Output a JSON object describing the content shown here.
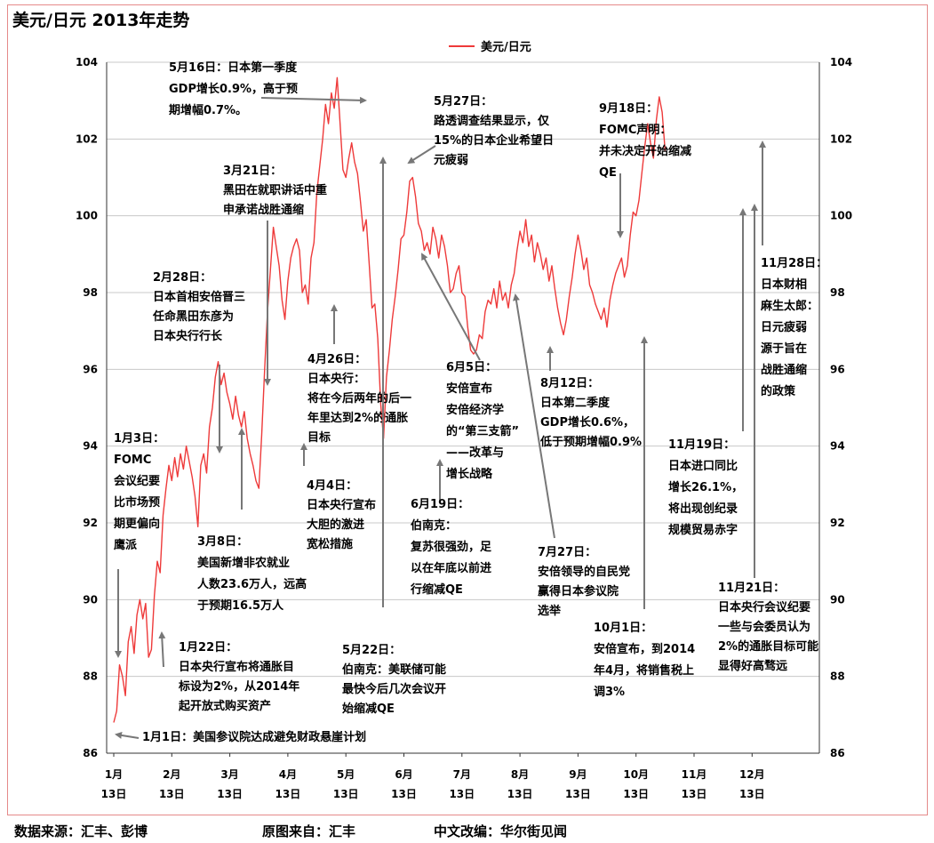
{
  "title": "美元/日元 2013年走势",
  "footer": {
    "source": "数据来源：汇丰、彭博",
    "origin": "原图来自：汇丰",
    "editor": "中文改编：华尔街见闻"
  },
  "chart_data": {
    "type": "line",
    "title": "美元/日元 2013年走势",
    "legend": [
      "美元/日元"
    ],
    "legend_position": "top-center",
    "series_color": "#ee3a3a",
    "grid_color": "#c8c8c8",
    "ylim": [
      86,
      104
    ],
    "yticks": [
      86,
      88,
      90,
      92,
      94,
      96,
      98,
      100,
      102,
      104
    ],
    "xlim": [
      0,
      12
    ],
    "xticks": [
      {
        "x": 0,
        "l1": "1月",
        "l2": "13日"
      },
      {
        "x": 1,
        "l1": "2月",
        "l2": "13日"
      },
      {
        "x": 2,
        "l1": "3月",
        "l2": "13日"
      },
      {
        "x": 3,
        "l1": "4月",
        "l2": "13日"
      },
      {
        "x": 4,
        "l1": "5月",
        "l2": "13日"
      },
      {
        "x": 5,
        "l1": "6月",
        "l2": "13日"
      },
      {
        "x": 6,
        "l1": "7月",
        "l2": "13日"
      },
      {
        "x": 7,
        "l1": "8月",
        "l2": "13日"
      },
      {
        "x": 8,
        "l1": "9月",
        "l2": "13日"
      },
      {
        "x": 9,
        "l1": "10月",
        "l2": "13日"
      },
      {
        "x": 10,
        "l1": "11月",
        "l2": "13日"
      },
      {
        "x": 11,
        "l1": "12月",
        "l2": "13日"
      }
    ],
    "series": [
      {
        "name": "美元/日元",
        "points": [
          [
            0.0,
            86.8
          ],
          [
            0.05,
            87.1
          ],
          [
            0.1,
            88.3
          ],
          [
            0.15,
            88.0
          ],
          [
            0.2,
            87.5
          ],
          [
            0.25,
            88.9
          ],
          [
            0.3,
            89.3
          ],
          [
            0.35,
            88.6
          ],
          [
            0.4,
            89.6
          ],
          [
            0.45,
            90.0
          ],
          [
            0.5,
            89.5
          ],
          [
            0.55,
            89.9
          ],
          [
            0.6,
            88.5
          ],
          [
            0.65,
            88.7
          ],
          [
            0.7,
            90.1
          ],
          [
            0.75,
            91.0
          ],
          [
            0.8,
            90.7
          ],
          [
            0.85,
            92.2
          ],
          [
            0.9,
            92.9
          ],
          [
            0.95,
            93.5
          ],
          [
            1.0,
            93.1
          ],
          [
            1.05,
            93.7
          ],
          [
            1.1,
            93.2
          ],
          [
            1.15,
            93.8
          ],
          [
            1.2,
            93.4
          ],
          [
            1.25,
            94.0
          ],
          [
            1.3,
            93.6
          ],
          [
            1.35,
            93.2
          ],
          [
            1.4,
            92.7
          ],
          [
            1.45,
            91.9
          ],
          [
            1.5,
            93.5
          ],
          [
            1.55,
            93.8
          ],
          [
            1.6,
            93.3
          ],
          [
            1.65,
            94.5
          ],
          [
            1.7,
            95.0
          ],
          [
            1.75,
            95.8
          ],
          [
            1.8,
            96.2
          ],
          [
            1.85,
            95.6
          ],
          [
            1.9,
            95.9
          ],
          [
            1.95,
            95.4
          ],
          [
            2.0,
            95.1
          ],
          [
            2.05,
            94.7
          ],
          [
            2.1,
            95.3
          ],
          [
            2.15,
            94.8
          ],
          [
            2.2,
            94.5
          ],
          [
            2.25,
            94.9
          ],
          [
            2.3,
            94.2
          ],
          [
            2.35,
            93.8
          ],
          [
            2.4,
            93.5
          ],
          [
            2.45,
            93.1
          ],
          [
            2.5,
            92.9
          ],
          [
            2.55,
            94.3
          ],
          [
            2.6,
            96.0
          ],
          [
            2.65,
            97.5
          ],
          [
            2.7,
            98.6
          ],
          [
            2.75,
            99.7
          ],
          [
            2.8,
            99.2
          ],
          [
            2.85,
            98.7
          ],
          [
            2.9,
            97.8
          ],
          [
            2.95,
            97.3
          ],
          [
            3.0,
            98.3
          ],
          [
            3.05,
            98.9
          ],
          [
            3.1,
            99.2
          ],
          [
            3.15,
            99.4
          ],
          [
            3.2,
            99.1
          ],
          [
            3.25,
            98.0
          ],
          [
            3.3,
            98.2
          ],
          [
            3.35,
            97.7
          ],
          [
            3.4,
            98.9
          ],
          [
            3.45,
            99.3
          ],
          [
            3.5,
            100.6
          ],
          [
            3.55,
            101.3
          ],
          [
            3.6,
            102.0
          ],
          [
            3.65,
            102.9
          ],
          [
            3.7,
            102.4
          ],
          [
            3.75,
            103.2
          ],
          [
            3.8,
            102.8
          ],
          [
            3.85,
            103.6
          ],
          [
            3.9,
            102.4
          ],
          [
            3.95,
            101.2
          ],
          [
            4.0,
            101.0
          ],
          [
            4.05,
            101.5
          ],
          [
            4.1,
            101.9
          ],
          [
            4.15,
            101.4
          ],
          [
            4.2,
            101.1
          ],
          [
            4.25,
            100.4
          ],
          [
            4.3,
            99.6
          ],
          [
            4.35,
            99.9
          ],
          [
            4.4,
            98.8
          ],
          [
            4.45,
            97.6
          ],
          [
            4.5,
            97.7
          ],
          [
            4.55,
            96.8
          ],
          [
            4.6,
            95.1
          ],
          [
            4.65,
            94.2
          ],
          [
            4.7,
            95.8
          ],
          [
            4.75,
            96.5
          ],
          [
            4.8,
            97.3
          ],
          [
            4.85,
            97.9
          ],
          [
            4.9,
            98.6
          ],
          [
            4.95,
            99.4
          ],
          [
            5.0,
            99.5
          ],
          [
            5.05,
            100.1
          ],
          [
            5.1,
            100.9
          ],
          [
            5.15,
            101.0
          ],
          [
            5.2,
            100.5
          ],
          [
            5.25,
            99.8
          ],
          [
            5.3,
            99.6
          ],
          [
            5.35,
            99.1
          ],
          [
            5.4,
            99.3
          ],
          [
            5.45,
            99.0
          ],
          [
            5.5,
            99.7
          ],
          [
            5.55,
            99.4
          ],
          [
            5.6,
            98.9
          ],
          [
            5.65,
            99.5
          ],
          [
            5.7,
            99.2
          ],
          [
            5.75,
            98.7
          ],
          [
            5.8,
            98.0
          ],
          [
            5.85,
            98.1
          ],
          [
            5.9,
            98.5
          ],
          [
            5.95,
            98.7
          ],
          [
            6.0,
            98.0
          ],
          [
            6.05,
            97.9
          ],
          [
            6.1,
            97.1
          ],
          [
            6.15,
            96.5
          ],
          [
            6.2,
            96.4
          ],
          [
            6.25,
            96.5
          ],
          [
            6.3,
            96.9
          ],
          [
            6.35,
            96.8
          ],
          [
            6.4,
            97.5
          ],
          [
            6.45,
            97.8
          ],
          [
            6.5,
            97.7
          ],
          [
            6.55,
            98.1
          ],
          [
            6.6,
            97.6
          ],
          [
            6.65,
            98.3
          ],
          [
            6.7,
            97.8
          ],
          [
            6.75,
            98.0
          ],
          [
            6.8,
            97.6
          ],
          [
            6.85,
            98.2
          ],
          [
            6.9,
            98.5
          ],
          [
            6.95,
            99.1
          ],
          [
            7.0,
            99.6
          ],
          [
            7.05,
            99.3
          ],
          [
            7.1,
            99.9
          ],
          [
            7.15,
            99.2
          ],
          [
            7.2,
            99.5
          ],
          [
            7.25,
            98.8
          ],
          [
            7.3,
            99.3
          ],
          [
            7.35,
            99.0
          ],
          [
            7.4,
            98.6
          ],
          [
            7.45,
            98.9
          ],
          [
            7.5,
            98.3
          ],
          [
            7.55,
            98.7
          ],
          [
            7.6,
            98.1
          ],
          [
            7.65,
            97.6
          ],
          [
            7.7,
            97.2
          ],
          [
            7.75,
            96.9
          ],
          [
            7.8,
            97.3
          ],
          [
            7.85,
            97.9
          ],
          [
            7.9,
            98.4
          ],
          [
            7.95,
            99.0
          ],
          [
            8.0,
            99.5
          ],
          [
            8.05,
            99.1
          ],
          [
            8.1,
            98.6
          ],
          [
            8.15,
            98.9
          ],
          [
            8.2,
            98.2
          ],
          [
            8.25,
            98.0
          ],
          [
            8.3,
            97.7
          ],
          [
            8.35,
            97.5
          ],
          [
            8.4,
            97.3
          ],
          [
            8.45,
            97.6
          ],
          [
            8.5,
            97.1
          ],
          [
            8.55,
            97.8
          ],
          [
            8.6,
            98.2
          ],
          [
            8.65,
            98.5
          ],
          [
            8.7,
            98.7
          ],
          [
            8.75,
            98.9
          ],
          [
            8.8,
            98.4
          ],
          [
            8.85,
            98.7
          ],
          [
            8.9,
            99.5
          ],
          [
            8.95,
            100.1
          ],
          [
            9.0,
            100.0
          ],
          [
            9.05,
            100.4
          ],
          [
            9.1,
            101.1
          ],
          [
            9.15,
            101.8
          ],
          [
            9.2,
            102.4
          ],
          [
            9.25,
            101.9
          ],
          [
            9.3,
            101.5
          ],
          [
            9.35,
            102.5
          ],
          [
            9.4,
            103.1
          ],
          [
            9.45,
            102.7
          ],
          [
            9.5,
            101.7
          ]
        ]
      }
    ],
    "annotations": [
      {
        "lines": [
          "1月1日：美国参议院达成避免财政悬崖计划"
        ]
      },
      {
        "lines": [
          "1月3日：",
          "FOMC",
          "会议纪要",
          "比市场预",
          "期更偏向",
          "鹰派"
        ]
      },
      {
        "lines": [
          "1月22日：",
          "日本央行宣布将通胀目",
          "标设为2%，从2014年",
          "起开放式购买资产"
        ]
      },
      {
        "lines": [
          "2月28日：",
          "日本首相安倍晋三",
          "任命黑田东彦为",
          "日本央行行长"
        ]
      },
      {
        "lines": [
          "3月8日：",
          "美国新增非农就业",
          "人数23.6万人，远高",
          "于预期16.5万人"
        ]
      },
      {
        "lines": [
          "3月21日：",
          "黑田在就职讲话中重",
          "申承诺战胜通缩"
        ]
      },
      {
        "lines": [
          "4月4日：",
          "日本央行宣布",
          "大胆的激进",
          "宽松措施"
        ]
      },
      {
        "lines": [
          "4月26日：",
          "日本央行：",
          "将在今后两年的后一",
          "年里达到2%的通胀",
          "目标"
        ]
      },
      {
        "lines": [
          "5月16日：日本第一季度",
          "GDP增长0.9%，高于预",
          "期增幅0.7%。"
        ]
      },
      {
        "lines": [
          "5月22日：",
          "伯南克：美联储可能",
          "最快今后几次会议开",
          "始缩减QE"
        ]
      },
      {
        "lines": [
          "5月27日：",
          "路透调查结果显示，仅",
          "15%的日本企业希望日",
          "元疲弱"
        ]
      },
      {
        "lines": [
          "6月5日：",
          "安倍宣布",
          "安倍经济学",
          "的“第三支箭”",
          "——改革与",
          "增长战略"
        ]
      },
      {
        "lines": [
          "6月19日：",
          "伯南克：",
          "复苏很强劲，足",
          "以在年底以前进",
          "行缩减QE"
        ]
      },
      {
        "lines": [
          "7月27日：",
          "安倍领导的自民党",
          "赢得日本参议院",
          "选举"
        ]
      },
      {
        "lines": [
          "8月12日：",
          "日本第二季度",
          "GDP增长0.6%，",
          "低于预期增幅0.9%"
        ]
      },
      {
        "lines": [
          "9月18日：",
          "FOMC声明：",
          "并未决定开始缩减",
          "QE"
        ]
      },
      {
        "lines": [
          "10月1日：",
          "安倍宣布，到2014",
          "年4月，将销售税上",
          "调3%"
        ]
      },
      {
        "lines": [
          "11月19日：",
          "日本进口同比",
          "增长26.1%，",
          "将出现创纪录",
          "规模贸易赤字"
        ]
      },
      {
        "lines": [
          "11月21日：",
          "日本央行会议纪要",
          "一些与会委员认为",
          "2%的通胀目标可能",
          "显得好高骛远"
        ]
      },
      {
        "lines": [
          "11月28日：",
          "日本财相",
          "麻生太郎：",
          "日元疲弱",
          "源于旨在",
          "战胜通缩",
          "的政策"
        ]
      }
    ]
  }
}
